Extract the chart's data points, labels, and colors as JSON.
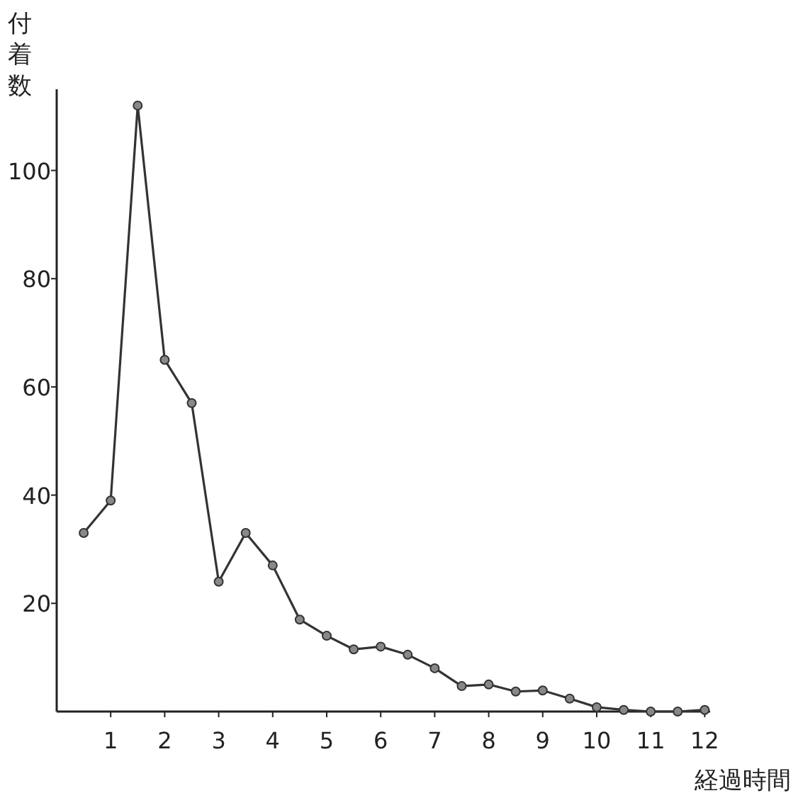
{
  "chart_data": {
    "type": "line",
    "xlabel": "経過時間",
    "ylabel": "付着数",
    "x": [
      0.5,
      1,
      1.5,
      2,
      2.5,
      3,
      3.5,
      4,
      4.5,
      5,
      5.5,
      6,
      6.5,
      7,
      7.5,
      8,
      8.5,
      9,
      9.5,
      10,
      10.5,
      11,
      11.5,
      12
    ],
    "series": [
      {
        "color": "#333333",
        "values": [
          33,
          39,
          112,
          65,
          57,
          24,
          33,
          27,
          17,
          14,
          11.5,
          12,
          10.5,
          8,
          4.7,
          5,
          3.7,
          3.9,
          2.4,
          0.8,
          0.3,
          0,
          0,
          0.3
        ]
      }
    ],
    "xlim": [
      0,
      12.1
    ],
    "ylim": [
      0,
      115
    ],
    "xticks": [
      1,
      2,
      3,
      4,
      5,
      6,
      7,
      8,
      9,
      10,
      11,
      12
    ],
    "yticks": [
      20,
      40,
      60,
      80,
      100
    ],
    "marker": "circle",
    "line_style": "solid"
  }
}
